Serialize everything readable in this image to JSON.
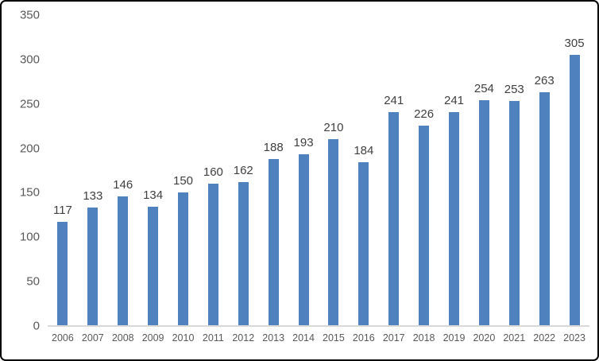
{
  "chart_data": {
    "type": "bar",
    "title": "",
    "xlabel": "",
    "ylabel": "",
    "categories": [
      "2006",
      "2007",
      "2008",
      "2009",
      "2010",
      "2011",
      "2012",
      "2013",
      "2014",
      "2015",
      "2016",
      "2017",
      "2018",
      "2019",
      "2020",
      "2021",
      "2022",
      "2023"
    ],
    "values": [
      117,
      133,
      146,
      134,
      150,
      160,
      162,
      188,
      193,
      210,
      184,
      241,
      226,
      241,
      254,
      253,
      263,
      305
    ],
    "ylim": [
      0,
      350
    ],
    "yticks": [
      0,
      50,
      100,
      150,
      200,
      250,
      300,
      350
    ],
    "grid": false,
    "legend": false,
    "data_labels": true,
    "colors": {
      "bar": "#4E81BD",
      "data_label": "#404040",
      "axis_tick_label": "#595959",
      "axis_line": "#D9D9D9",
      "background": "#FFFFFF",
      "border": "#000000"
    }
  }
}
